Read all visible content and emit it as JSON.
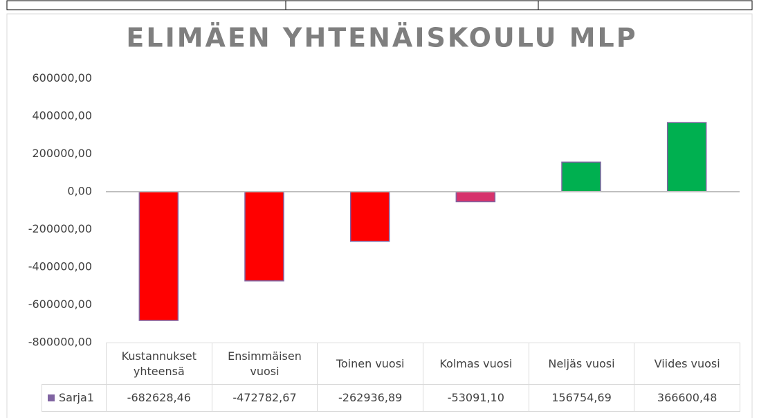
{
  "chart_data": {
    "type": "bar",
    "title": "ELIMÄEN YHTENÄISKOULU MLP",
    "categories": [
      "Kustannukset yhteensä",
      "Ensimmäisen vuosi",
      "Toinen vuosi",
      "Kolmas vuosi",
      "Neljäs vuosi",
      "Viides vuosi"
    ],
    "series": [
      {
        "name": "Sarja1",
        "color": "#8064a2",
        "point_colors": [
          "#ff0000",
          "#ff0000",
          "#ff0000",
          "#d6336c",
          "#00b050",
          "#00b050"
        ],
        "values": [
          -682628.46,
          -472782.67,
          -262936.89,
          -53091.1,
          156754.69,
          366600.48
        ],
        "value_labels": [
          "-682628,46",
          "-472782,67",
          "-262936,89",
          "-53091,10",
          "156754,69",
          "366600,48"
        ]
      }
    ],
    "ylim": [
      -800000,
      600000
    ],
    "yticks": [
      {
        "value": 600000,
        "label": "600000,00"
      },
      {
        "value": 400000,
        "label": "400000,00"
      },
      {
        "value": 200000,
        "label": "200000,00"
      },
      {
        "value": 0,
        "label": "0,00"
      },
      {
        "value": -200000,
        "label": "-200000,00"
      },
      {
        "value": -400000,
        "label": "-400000,00"
      },
      {
        "value": -600000,
        "label": "-600000,00"
      },
      {
        "value": -800000,
        "label": "-800000,00"
      }
    ],
    "grid": false,
    "data_table": true
  }
}
